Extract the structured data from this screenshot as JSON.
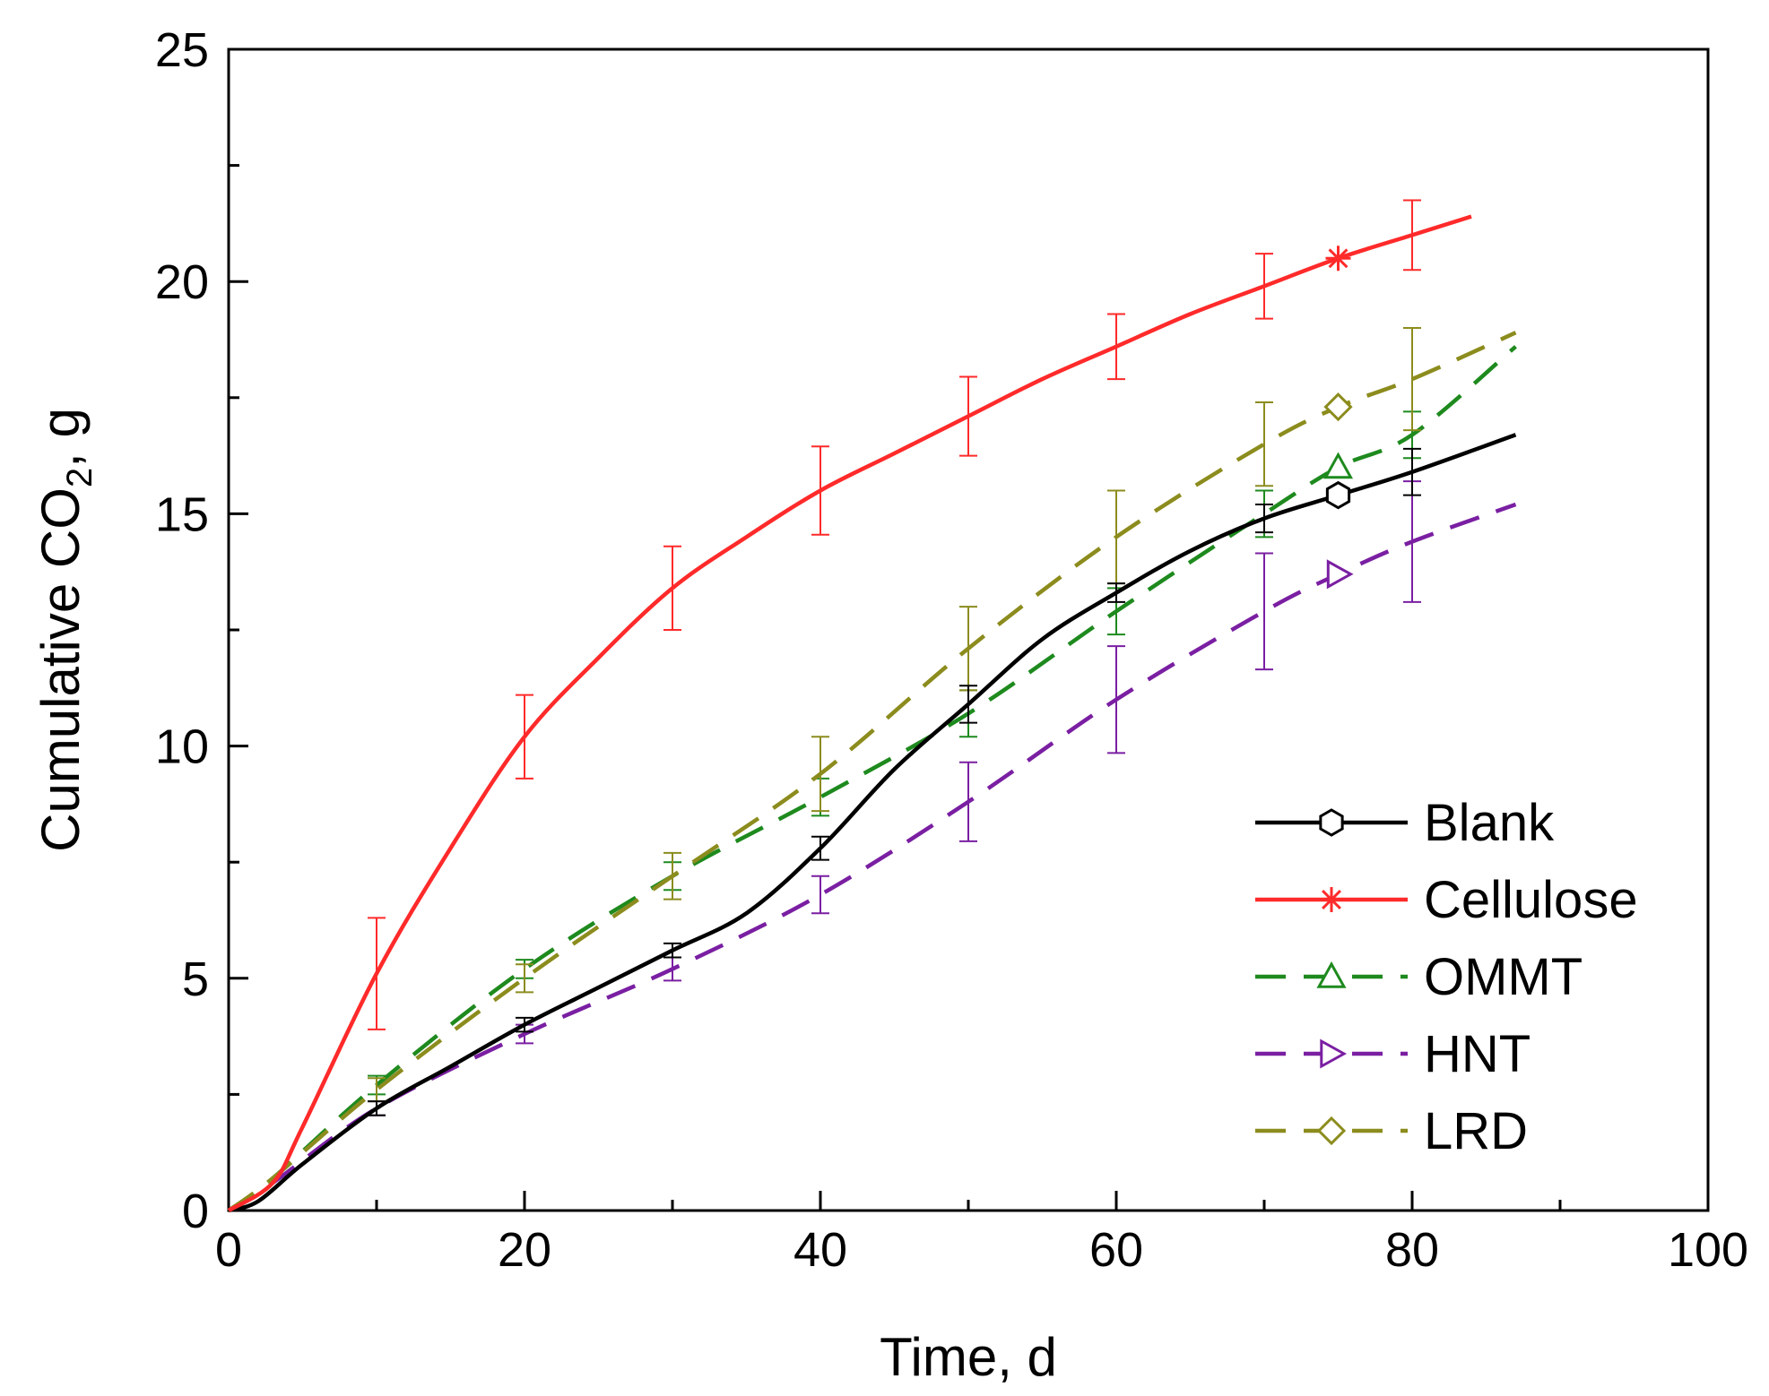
{
  "chart_data": {
    "type": "line",
    "xlabel": "Time, d",
    "ylabel_parts": {
      "pre": "Cumulative CO",
      "sub": "2",
      "post": ", g"
    },
    "xlim": [
      0,
      100
    ],
    "ylim": [
      0,
      25
    ],
    "x_ticks": [
      0,
      20,
      40,
      60,
      80,
      100
    ],
    "x_tick_labels": [
      "0",
      "20",
      "40",
      "60",
      "80",
      "100"
    ],
    "y_ticks": [
      0,
      5,
      10,
      15,
      20,
      25
    ],
    "y_tick_labels": [
      "0",
      "5",
      "10",
      "15",
      "20",
      "25"
    ],
    "legend_position": "bottom-right",
    "series": [
      {
        "name": "Blank",
        "color": "#000000",
        "dash": "solid",
        "marker": "hexagon",
        "marker_x": 75,
        "points": [
          [
            0,
            0
          ],
          [
            2,
            0.2
          ],
          [
            5,
            1.0
          ],
          [
            10,
            2.2
          ],
          [
            15,
            3.1
          ],
          [
            20,
            4.0
          ],
          [
            25,
            4.8
          ],
          [
            30,
            5.6
          ],
          [
            35,
            6.4
          ],
          [
            40,
            7.8
          ],
          [
            45,
            9.5
          ],
          [
            50,
            10.9
          ],
          [
            55,
            12.3
          ],
          [
            60,
            13.3
          ],
          [
            65,
            14.2
          ],
          [
            70,
            14.9
          ],
          [
            75,
            15.4
          ],
          [
            80,
            15.9
          ],
          [
            87,
            16.7
          ]
        ],
        "errors": [
          [
            10,
            2.2,
            0.15
          ],
          [
            20,
            4.0,
            0.15
          ],
          [
            30,
            5.6,
            0.15
          ],
          [
            40,
            7.8,
            0.25
          ],
          [
            50,
            10.9,
            0.4
          ],
          [
            60,
            13.3,
            0.2
          ],
          [
            70,
            14.9,
            0.3
          ],
          [
            80,
            15.9,
            0.5
          ]
        ]
      },
      {
        "name": "Cellulose",
        "color": "#ff2a2a",
        "dash": "solid",
        "marker": "asterisk",
        "marker_x": 75,
        "points": [
          [
            0,
            0
          ],
          [
            3,
            0.6
          ],
          [
            5,
            1.8
          ],
          [
            10,
            5.1
          ],
          [
            15,
            7.8
          ],
          [
            20,
            10.2
          ],
          [
            25,
            11.9
          ],
          [
            30,
            13.4
          ],
          [
            35,
            14.5
          ],
          [
            40,
            15.5
          ],
          [
            45,
            16.3
          ],
          [
            50,
            17.1
          ],
          [
            55,
            17.9
          ],
          [
            60,
            18.6
          ],
          [
            65,
            19.3
          ],
          [
            70,
            19.9
          ],
          [
            75,
            20.5
          ],
          [
            80,
            21.0
          ],
          [
            84,
            21.4
          ]
        ],
        "errors": [
          [
            10,
            5.1,
            1.2
          ],
          [
            20,
            10.2,
            0.9
          ],
          [
            30,
            13.4,
            0.9
          ],
          [
            40,
            15.5,
            0.95
          ],
          [
            50,
            17.1,
            0.85
          ],
          [
            60,
            18.6,
            0.7
          ],
          [
            70,
            19.9,
            0.7
          ],
          [
            80,
            21.0,
            0.75
          ]
        ]
      },
      {
        "name": "OMMT",
        "color": "#1e8a1e",
        "dash": "dashed",
        "marker": "triangle",
        "marker_x": 75,
        "points": [
          [
            0,
            0
          ],
          [
            3,
            0.7
          ],
          [
            10,
            2.7
          ],
          [
            20,
            5.2
          ],
          [
            30,
            7.2
          ],
          [
            40,
            8.9
          ],
          [
            50,
            10.7
          ],
          [
            60,
            12.9
          ],
          [
            70,
            15.0
          ],
          [
            75,
            16.0
          ],
          [
            80,
            16.7
          ],
          [
            87,
            18.6
          ]
        ],
        "errors": [
          [
            10,
            2.7,
            0.2
          ],
          [
            20,
            5.2,
            0.2
          ],
          [
            30,
            7.2,
            0.3
          ],
          [
            40,
            8.9,
            0.4
          ],
          [
            50,
            10.7,
            0.5
          ],
          [
            60,
            12.9,
            0.5
          ],
          [
            70,
            15.0,
            0.5
          ],
          [
            80,
            16.7,
            0.5
          ]
        ]
      },
      {
        "name": "HNT",
        "color": "#7a1fa2",
        "dash": "dashed",
        "marker": "right-triangle",
        "marker_x": 75,
        "points": [
          [
            0,
            0
          ],
          [
            3,
            0.6
          ],
          [
            10,
            2.2
          ],
          [
            20,
            3.8
          ],
          [
            30,
            5.2
          ],
          [
            40,
            6.8
          ],
          [
            50,
            8.8
          ],
          [
            60,
            11.0
          ],
          [
            70,
            12.9
          ],
          [
            75,
            13.7
          ],
          [
            80,
            14.4
          ],
          [
            87,
            15.2
          ]
        ],
        "errors": [
          [
            10,
            2.2,
            0.15
          ],
          [
            20,
            3.8,
            0.2
          ],
          [
            30,
            5.2,
            0.25
          ],
          [
            40,
            6.8,
            0.4
          ],
          [
            50,
            8.8,
            0.85
          ],
          [
            60,
            11.0,
            1.15
          ],
          [
            70,
            12.9,
            1.25
          ],
          [
            80,
            14.4,
            1.3
          ]
        ]
      },
      {
        "name": "LRD",
        "color": "#8c8c1e",
        "dash": "dashed",
        "marker": "diamond",
        "marker_x": 75,
        "points": [
          [
            0,
            0
          ],
          [
            3,
            0.7
          ],
          [
            10,
            2.6
          ],
          [
            20,
            5.0
          ],
          [
            30,
            7.2
          ],
          [
            40,
            9.4
          ],
          [
            50,
            12.1
          ],
          [
            60,
            14.5
          ],
          [
            70,
            16.5
          ],
          [
            75,
            17.3
          ],
          [
            80,
            17.9
          ],
          [
            87,
            18.9
          ]
        ],
        "errors": [
          [
            10,
            2.6,
            0.25
          ],
          [
            20,
            5.0,
            0.3
          ],
          [
            30,
            7.2,
            0.5
          ],
          [
            40,
            9.4,
            0.8
          ],
          [
            50,
            12.1,
            0.9
          ],
          [
            60,
            14.5,
            1.0
          ],
          [
            70,
            16.5,
            0.9
          ],
          [
            80,
            17.9,
            1.1
          ]
        ]
      }
    ]
  }
}
